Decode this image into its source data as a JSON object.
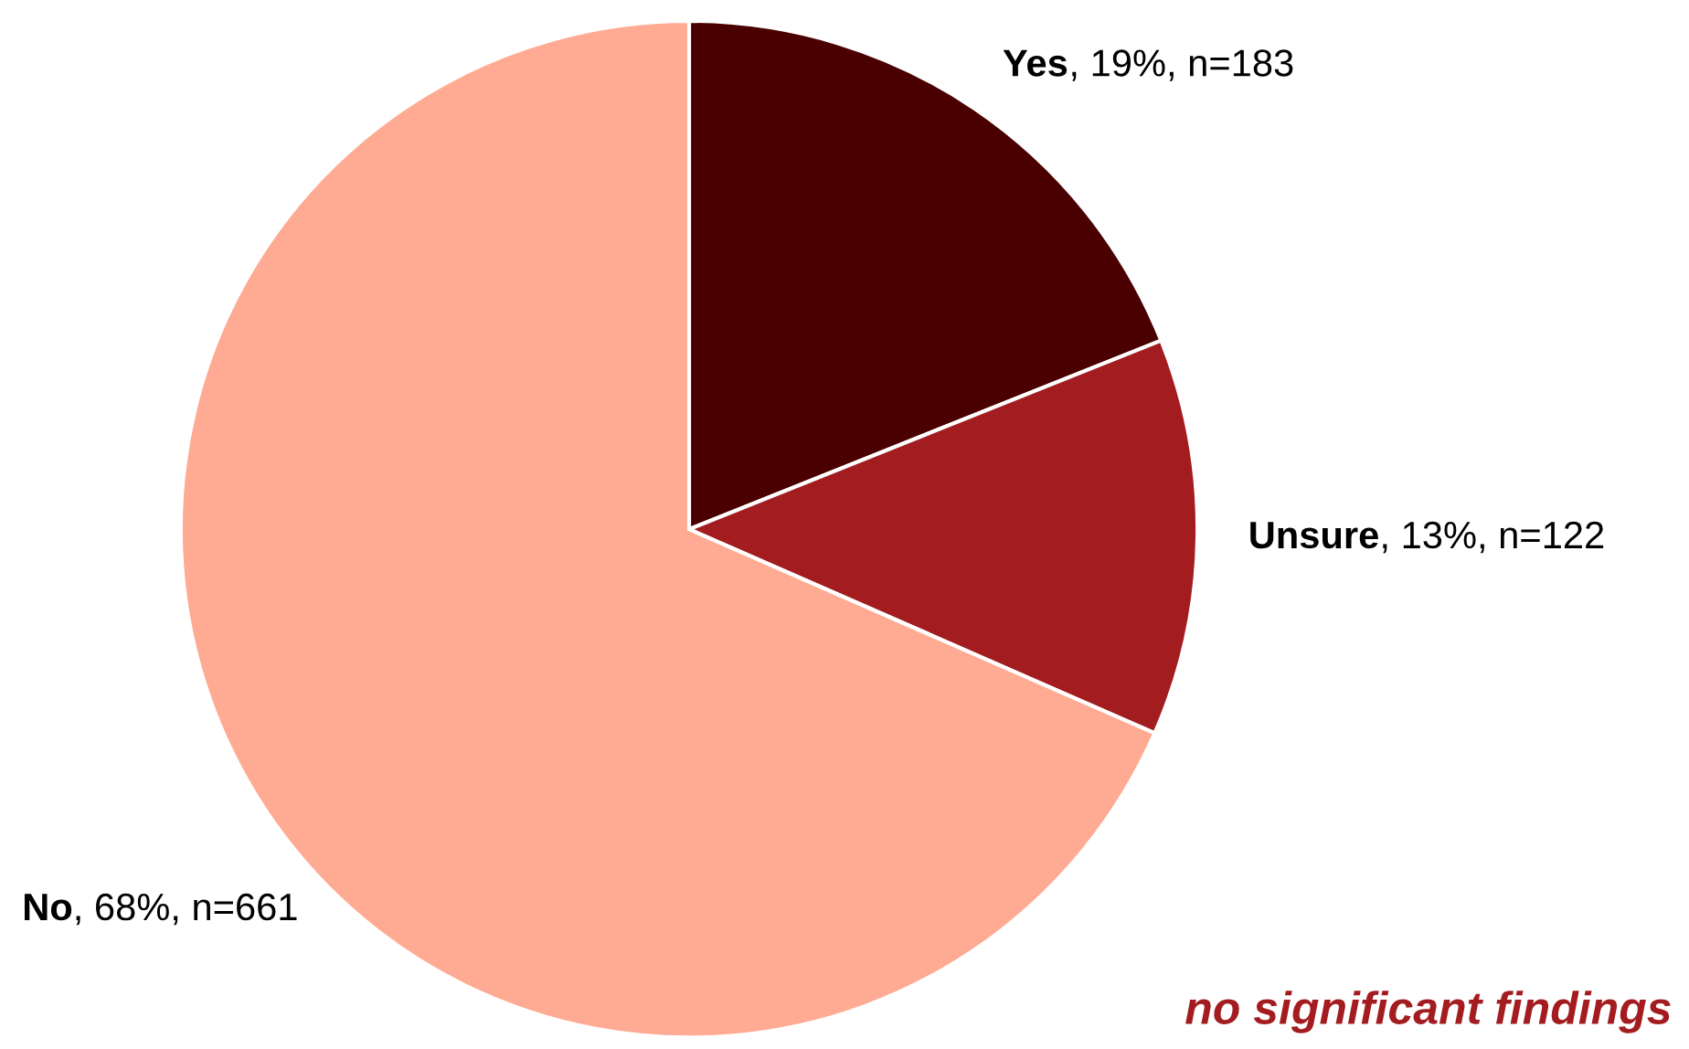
{
  "chart_data": {
    "type": "pie",
    "categories": [
      "Yes",
      "Unsure",
      "No"
    ],
    "values": [
      183,
      122,
      661
    ],
    "value_labels": [
      ", 19%, n=183",
      ", 13%, n=122",
      ", 68%, n=661"
    ],
    "colors": [
      "#4a0000",
      "#a31c20",
      "#ffab94"
    ],
    "annotations": [
      "no significant findings"
    ],
    "legend": false
  }
}
